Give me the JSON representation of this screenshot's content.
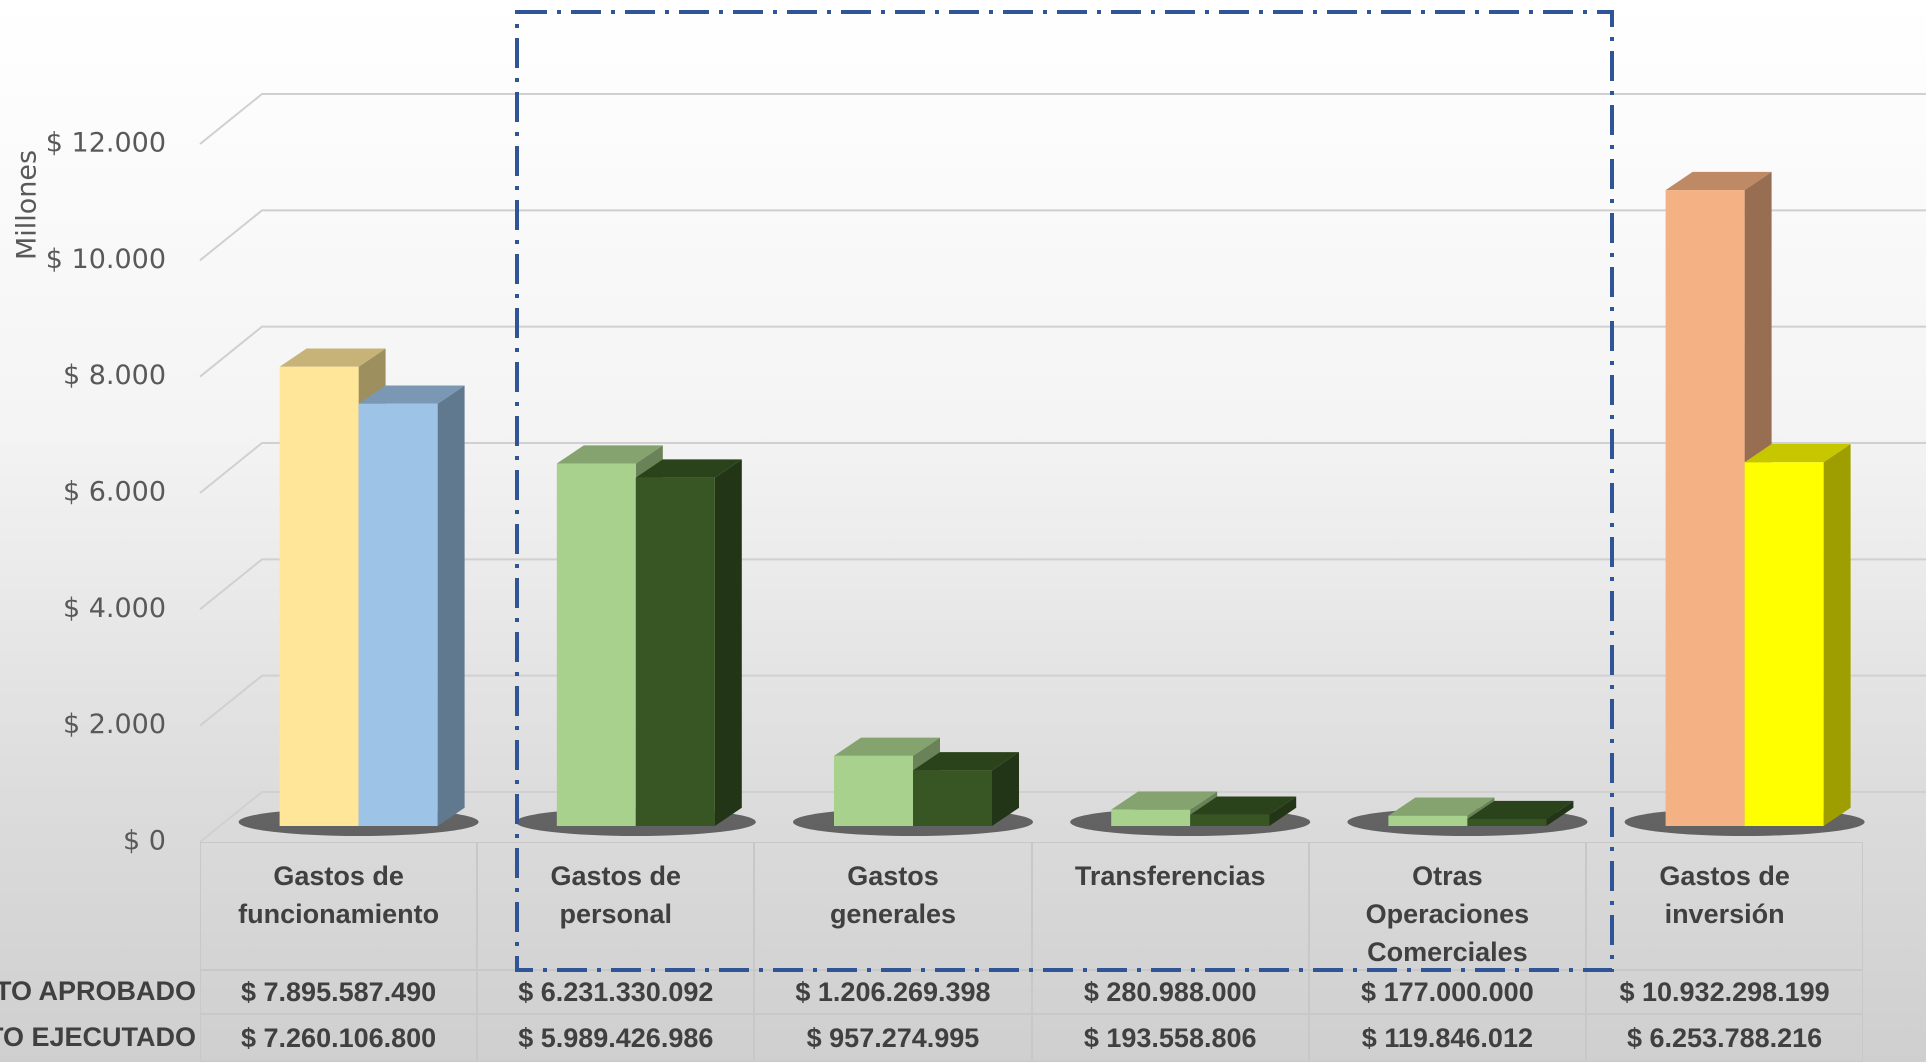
{
  "chart_data": {
    "type": "bar3d",
    "y_axis_title": "Millones",
    "categories": [
      "Gastos de funcionamiento",
      "Gastos de personal",
      "Gastos generales",
      "Transferencias",
      "Otras Operaciones Comerciales",
      "Gastos de inversión"
    ],
    "series": [
      {
        "name": "TO APROBADO",
        "colors": [
          "#FFE699",
          "#A9D18E",
          "#A9D18E",
          "#A9D18E",
          "#A9D18E",
          "#F4B183"
        ],
        "values": [
          7895.58749,
          6231.330092,
          1206.269398,
          280.988,
          177.0,
          10932.298199
        ],
        "value_labels": [
          "$ 7.895.587.490",
          "$ 6.231.330.092",
          "$ 1.206.269.398",
          "$ 280.988.000",
          "$ 177.000.000",
          "$ 10.932.298.199"
        ]
      },
      {
        "name": "TO EJECUTADO",
        "colors": [
          "#9DC3E6",
          "#375623",
          "#375623",
          "#375623",
          "#375623",
          "#FFFF00"
        ],
        "values": [
          7260.1068,
          5989.426986,
          957.274995,
          193.558806,
          119.846012,
          6253.788216
        ],
        "value_labels": [
          "$ 7.260.106.800",
          "$ 5.989.426.986",
          "$ 957.274.995",
          "$ 193.558.806",
          "$ 119.846.012",
          "$ 6.253.788.216"
        ]
      }
    ],
    "ylim": [
      0,
      12000
    ],
    "yticks": [
      {
        "value": 0,
        "label": "$ 0"
      },
      {
        "value": 2000,
        "label": "$ 2.000"
      },
      {
        "value": 4000,
        "label": "$ 4.000"
      },
      {
        "value": 6000,
        "label": "$ 6.000"
      },
      {
        "value": 8000,
        "label": "$ 8.000"
      },
      {
        "value": 10000,
        "label": "$ 10.000"
      },
      {
        "value": 12000,
        "label": "$ 12.000"
      }
    ],
    "grid": true
  }
}
